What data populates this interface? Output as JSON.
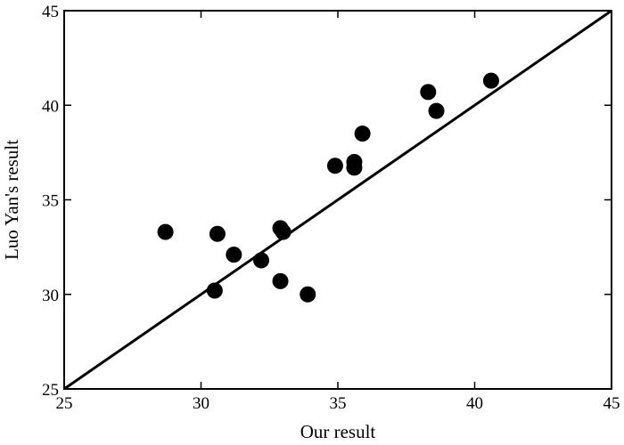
{
  "chart_data": {
    "type": "scatter",
    "title": "",
    "xlabel": "Our result",
    "ylabel": "Luo Yan's result",
    "xlim": [
      25,
      45
    ],
    "ylim": [
      25,
      45
    ],
    "xticks": [
      "25",
      "30",
      "35",
      "40",
      "45"
    ],
    "yticks": [
      "25",
      "30",
      "35",
      "40",
      "45"
    ],
    "grid": false,
    "legend": "none",
    "colors": {
      "marker": "#000000",
      "line": "#000000"
    },
    "series": [
      {
        "points": [
          {
            "x": 28.7,
            "y": 33.3
          },
          {
            "x": 30.5,
            "y": 30.2
          },
          {
            "x": 30.6,
            "y": 33.2
          },
          {
            "x": 31.2,
            "y": 32.1
          },
          {
            "x": 32.2,
            "y": 31.8
          },
          {
            "x": 32.9,
            "y": 33.5
          },
          {
            "x": 33.0,
            "y": 33.3
          },
          {
            "x": 32.9,
            "y": 30.7
          },
          {
            "x": 33.9,
            "y": 30.0
          },
          {
            "x": 34.9,
            "y": 36.8
          },
          {
            "x": 35.6,
            "y": 37.0
          },
          {
            "x": 35.6,
            "y": 36.7
          },
          {
            "x": 35.9,
            "y": 38.5
          },
          {
            "x": 38.3,
            "y": 40.7
          },
          {
            "x": 38.6,
            "y": 39.7
          },
          {
            "x": 40.6,
            "y": 41.3
          }
        ]
      }
    ],
    "reference_line": {
      "from": [
        25,
        25
      ],
      "to": [
        45,
        45
      ]
    }
  }
}
